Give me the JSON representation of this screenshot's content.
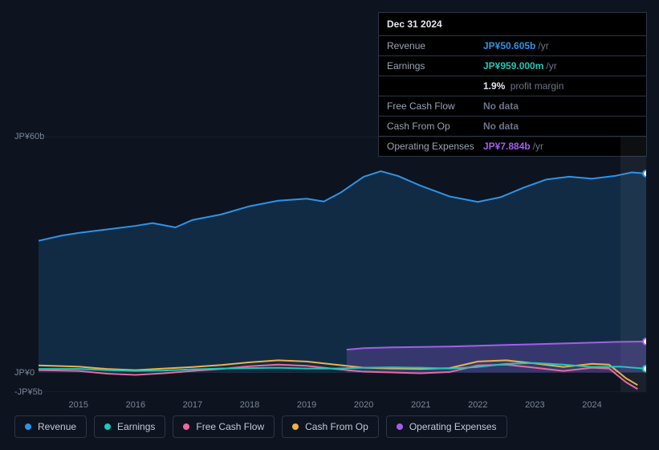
{
  "background_color": "#0d1420",
  "tooltip": {
    "date": "Dec 31 2024",
    "rows": [
      {
        "label": "Revenue",
        "value": "JP¥50.605b",
        "suffix": "/yr",
        "color": "#2e93e8"
      },
      {
        "label": "Earnings",
        "value": "JP¥959.000m",
        "suffix": "/yr",
        "color": "#1fc7b6"
      }
    ],
    "margin": {
      "value": "1.9%",
      "label": "profit margin"
    },
    "extra_rows": [
      {
        "label": "Free Cash Flow",
        "value": "No data",
        "color": "#6b7586"
      },
      {
        "label": "Cash From Op",
        "value": "No data",
        "color": "#6b7586"
      },
      {
        "label": "Operating Expenses",
        "value": "JP¥7.884b",
        "suffix": "/yr",
        "color": "#a35ee8"
      }
    ]
  },
  "chart": {
    "type": "area-line",
    "y_min_b": -5,
    "y_max_b": 60,
    "y_ticks": [
      {
        "v": 60,
        "label": "JP¥60b"
      },
      {
        "v": 0,
        "label": "JP¥0"
      },
      {
        "v": -5,
        "label": "-JP¥5b"
      }
    ],
    "x_min": 2014.3,
    "x_max": 2024.95,
    "x_ticks": [
      2015,
      2016,
      2017,
      2018,
      2019,
      2020,
      2021,
      2022,
      2023,
      2024
    ],
    "forecast_start": 2024.5,
    "forecast_fill": "rgba(200,210,225,0.07)",
    "gridline_color": "#1a2332",
    "series": [
      {
        "name": "Revenue",
        "color": "#2e93e8",
        "fill": "rgba(46,147,232,0.18)",
        "area": true,
        "end_marker": true,
        "points": [
          [
            2014.3,
            33.5
          ],
          [
            2014.7,
            34.8
          ],
          [
            2015.0,
            35.5
          ],
          [
            2015.5,
            36.4
          ],
          [
            2016.0,
            37.3
          ],
          [
            2016.3,
            38.0
          ],
          [
            2016.7,
            36.9
          ],
          [
            2017.0,
            38.8
          ],
          [
            2017.5,
            40.2
          ],
          [
            2018.0,
            42.3
          ],
          [
            2018.5,
            43.7
          ],
          [
            2019.0,
            44.2
          ],
          [
            2019.3,
            43.5
          ],
          [
            2019.6,
            45.8
          ],
          [
            2020.0,
            49.8
          ],
          [
            2020.3,
            51.2
          ],
          [
            2020.6,
            50.0
          ],
          [
            2021.0,
            47.5
          ],
          [
            2021.5,
            44.8
          ],
          [
            2022.0,
            43.4
          ],
          [
            2022.4,
            44.6
          ],
          [
            2022.8,
            47.0
          ],
          [
            2023.2,
            49.1
          ],
          [
            2023.6,
            49.8
          ],
          [
            2024.0,
            49.3
          ],
          [
            2024.4,
            50.0
          ],
          [
            2024.7,
            50.9
          ],
          [
            2024.95,
            50.6
          ]
        ]
      },
      {
        "name": "Operating Expenses",
        "color": "#a35ee8",
        "fill": "rgba(163,94,232,0.25)",
        "area": true,
        "start": 2019.7,
        "end_marker": true,
        "points": [
          [
            2019.7,
            5.8
          ],
          [
            2020.0,
            6.2
          ],
          [
            2020.5,
            6.4
          ],
          [
            2021.0,
            6.5
          ],
          [
            2021.5,
            6.6
          ],
          [
            2022.0,
            6.8
          ],
          [
            2022.5,
            7.0
          ],
          [
            2023.0,
            7.2
          ],
          [
            2023.5,
            7.4
          ],
          [
            2024.0,
            7.6
          ],
          [
            2024.5,
            7.8
          ],
          [
            2024.95,
            7.88
          ]
        ]
      },
      {
        "name": "Cash From Op",
        "color": "#eab14a",
        "points": [
          [
            2014.3,
            1.8
          ],
          [
            2015.0,
            1.5
          ],
          [
            2015.5,
            0.9
          ],
          [
            2016.0,
            0.6
          ],
          [
            2016.5,
            1.0
          ],
          [
            2017.0,
            1.4
          ],
          [
            2017.5,
            1.9
          ],
          [
            2018.0,
            2.6
          ],
          [
            2018.5,
            3.1
          ],
          [
            2019.0,
            2.8
          ],
          [
            2019.5,
            2.0
          ],
          [
            2020.0,
            1.2
          ],
          [
            2020.5,
            1.0
          ],
          [
            2021.0,
            0.9
          ],
          [
            2021.5,
            1.1
          ],
          [
            2022.0,
            2.8
          ],
          [
            2022.5,
            3.1
          ],
          [
            2023.0,
            2.3
          ],
          [
            2023.5,
            1.4
          ],
          [
            2024.0,
            2.2
          ],
          [
            2024.3,
            2.0
          ],
          [
            2024.6,
            -1.5
          ],
          [
            2024.8,
            -3.2
          ]
        ]
      },
      {
        "name": "Free Cash Flow",
        "color": "#e86aa0",
        "points": [
          [
            2014.3,
            0.6
          ],
          [
            2015.0,
            0.4
          ],
          [
            2015.5,
            -0.3
          ],
          [
            2016.0,
            -0.6
          ],
          [
            2016.5,
            -0.2
          ],
          [
            2017.0,
            0.4
          ],
          [
            2017.5,
            0.9
          ],
          [
            2018.0,
            1.6
          ],
          [
            2018.5,
            2.0
          ],
          [
            2019.0,
            1.7
          ],
          [
            2019.5,
            0.9
          ],
          [
            2020.0,
            0.2
          ],
          [
            2020.5,
            0.0
          ],
          [
            2021.0,
            -0.2
          ],
          [
            2021.5,
            0.1
          ],
          [
            2022.0,
            1.8
          ],
          [
            2022.5,
            2.0
          ],
          [
            2023.0,
            1.2
          ],
          [
            2023.5,
            0.4
          ],
          [
            2024.0,
            1.2
          ],
          [
            2024.3,
            1.0
          ],
          [
            2024.6,
            -2.5
          ],
          [
            2024.8,
            -4.2
          ]
        ]
      },
      {
        "name": "Earnings",
        "color": "#1fc7b6",
        "end_marker": true,
        "points": [
          [
            2014.3,
            0.9
          ],
          [
            2015.0,
            0.9
          ],
          [
            2015.5,
            0.6
          ],
          [
            2016.0,
            0.4
          ],
          [
            2016.5,
            0.5
          ],
          [
            2017.0,
            0.8
          ],
          [
            2017.5,
            1.0
          ],
          [
            2018.0,
            1.1
          ],
          [
            2018.5,
            1.2
          ],
          [
            2019.0,
            1.0
          ],
          [
            2019.5,
            1.0
          ],
          [
            2020.0,
            1.2
          ],
          [
            2020.5,
            1.3
          ],
          [
            2021.0,
            1.2
          ],
          [
            2021.5,
            1.0
          ],
          [
            2022.0,
            1.4
          ],
          [
            2022.5,
            2.2
          ],
          [
            2023.0,
            2.4
          ],
          [
            2023.5,
            2.0
          ],
          [
            2024.0,
            1.4
          ],
          [
            2024.5,
            1.5
          ],
          [
            2024.95,
            0.96
          ]
        ]
      }
    ],
    "legend_order": [
      "Revenue",
      "Earnings",
      "Free Cash Flow",
      "Cash From Op",
      "Operating Expenses"
    ]
  }
}
